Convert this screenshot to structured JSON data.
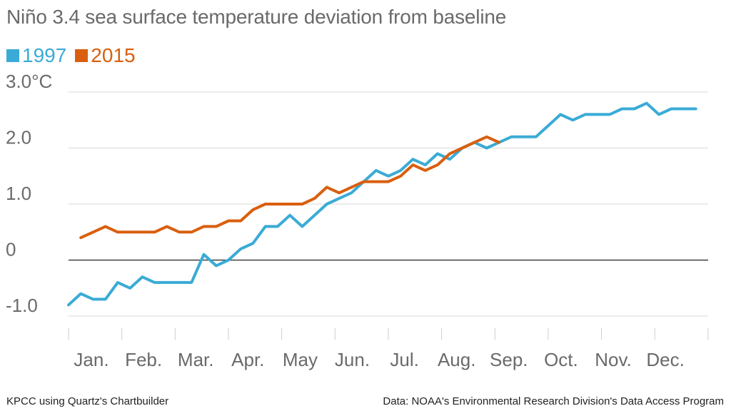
{
  "chart_data": {
    "type": "line",
    "title": "Niño 3.4 sea surface temperature deviation from baseline",
    "y_unit_label": "3.0°C",
    "y_ticks": [
      {
        "value": 3.0,
        "label": "3.0°C"
      },
      {
        "value": 2.0,
        "label": "2.0"
      },
      {
        "value": 1.0,
        "label": "1.0"
      },
      {
        "value": 0,
        "label": "0"
      },
      {
        "value": -1.0,
        "label": "-1.0"
      }
    ],
    "ylim": [
      -1.0,
      3.0
    ],
    "months": [
      "Jan.",
      "Feb.",
      "Mar.",
      "Apr.",
      "May",
      "Jun.",
      "Jul.",
      "Aug.",
      "Sep.",
      "Oct.",
      "Nov.",
      "Dec."
    ],
    "x_unit": "week of year",
    "xlim": [
      0,
      52
    ],
    "grid": true,
    "legend_position": "top-left",
    "series": [
      {
        "name": "1997",
        "color": "#3aabd6",
        "x": [
          0,
          1,
          2,
          3,
          4,
          5,
          6,
          7,
          8,
          9,
          10,
          11,
          12,
          13,
          14,
          15,
          16,
          17,
          18,
          19,
          20,
          21,
          22,
          23,
          24,
          25,
          26,
          27,
          28,
          29,
          30,
          31,
          32,
          33,
          34,
          35,
          36,
          37,
          38,
          39,
          40,
          41,
          42,
          43,
          44,
          45,
          46,
          47,
          48,
          49,
          50,
          51
        ],
        "values": [
          -0.8,
          -0.6,
          -0.7,
          -0.7,
          -0.4,
          -0.5,
          -0.3,
          -0.4,
          -0.4,
          -0.4,
          -0.4,
          0.1,
          -0.1,
          0.0,
          0.2,
          0.3,
          0.6,
          0.6,
          0.8,
          0.6,
          0.8,
          1.0,
          1.1,
          1.2,
          1.4,
          1.6,
          1.5,
          1.6,
          1.8,
          1.7,
          1.9,
          1.8,
          2.0,
          2.1,
          2.0,
          2.1,
          2.2,
          2.2,
          2.2,
          2.4,
          2.6,
          2.5,
          2.6,
          2.6,
          2.6,
          2.7,
          2.7,
          2.8,
          2.6,
          2.7,
          2.7,
          2.7
        ]
      },
      {
        "name": "2015",
        "color": "#d95f0e",
        "x": [
          1,
          2,
          3,
          4,
          5,
          6,
          7,
          8,
          9,
          10,
          11,
          12,
          13,
          14,
          15,
          16,
          17,
          18,
          19,
          20,
          21,
          22,
          23,
          24,
          25,
          26,
          27,
          28,
          29,
          30,
          31,
          32,
          33,
          34,
          35
        ],
        "values": [
          0.4,
          0.5,
          0.6,
          0.5,
          0.5,
          0.5,
          0.5,
          0.6,
          0.5,
          0.5,
          0.6,
          0.6,
          0.7,
          0.7,
          0.9,
          1.0,
          1.0,
          1.0,
          1.0,
          1.1,
          1.3,
          1.2,
          1.3,
          1.4,
          1.4,
          1.4,
          1.5,
          1.7,
          1.6,
          1.7,
          1.9,
          2.0,
          2.1,
          2.2,
          2.1
        ]
      }
    ]
  },
  "footer": {
    "credit": "KPCC using Quartz's Chartbuilder",
    "source": "Data: NOAA's Environmental Research Division's Data Access Program"
  }
}
